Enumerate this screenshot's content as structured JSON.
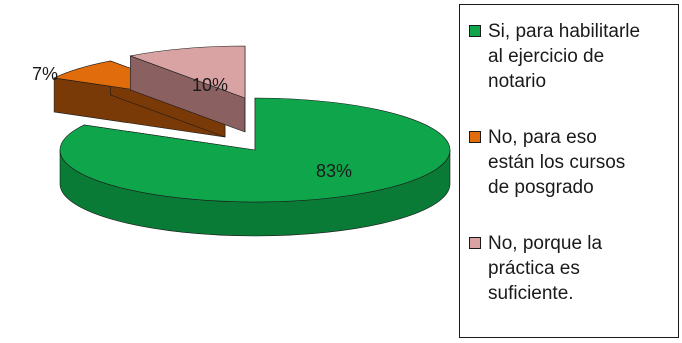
{
  "chart_data": {
    "type": "pie",
    "style": "3d-exploded",
    "title": "",
    "legend_position": "right",
    "labels": [
      "Si, para habilitarle\nal ejercicio de\nnotario",
      "No, para eso\nestán los cursos\nde posgrado",
      "No, porque la\npráctica es\nsuficiente."
    ],
    "values": [
      83,
      7,
      10
    ],
    "value_labels": [
      "83%",
      "7%",
      "10%"
    ],
    "colors": [
      "#0ea54b",
      "#e06c0c",
      "#d9a3a3"
    ],
    "side_colors": [
      "#0a7a37",
      "#7a3a08",
      "#8a6060"
    ]
  }
}
